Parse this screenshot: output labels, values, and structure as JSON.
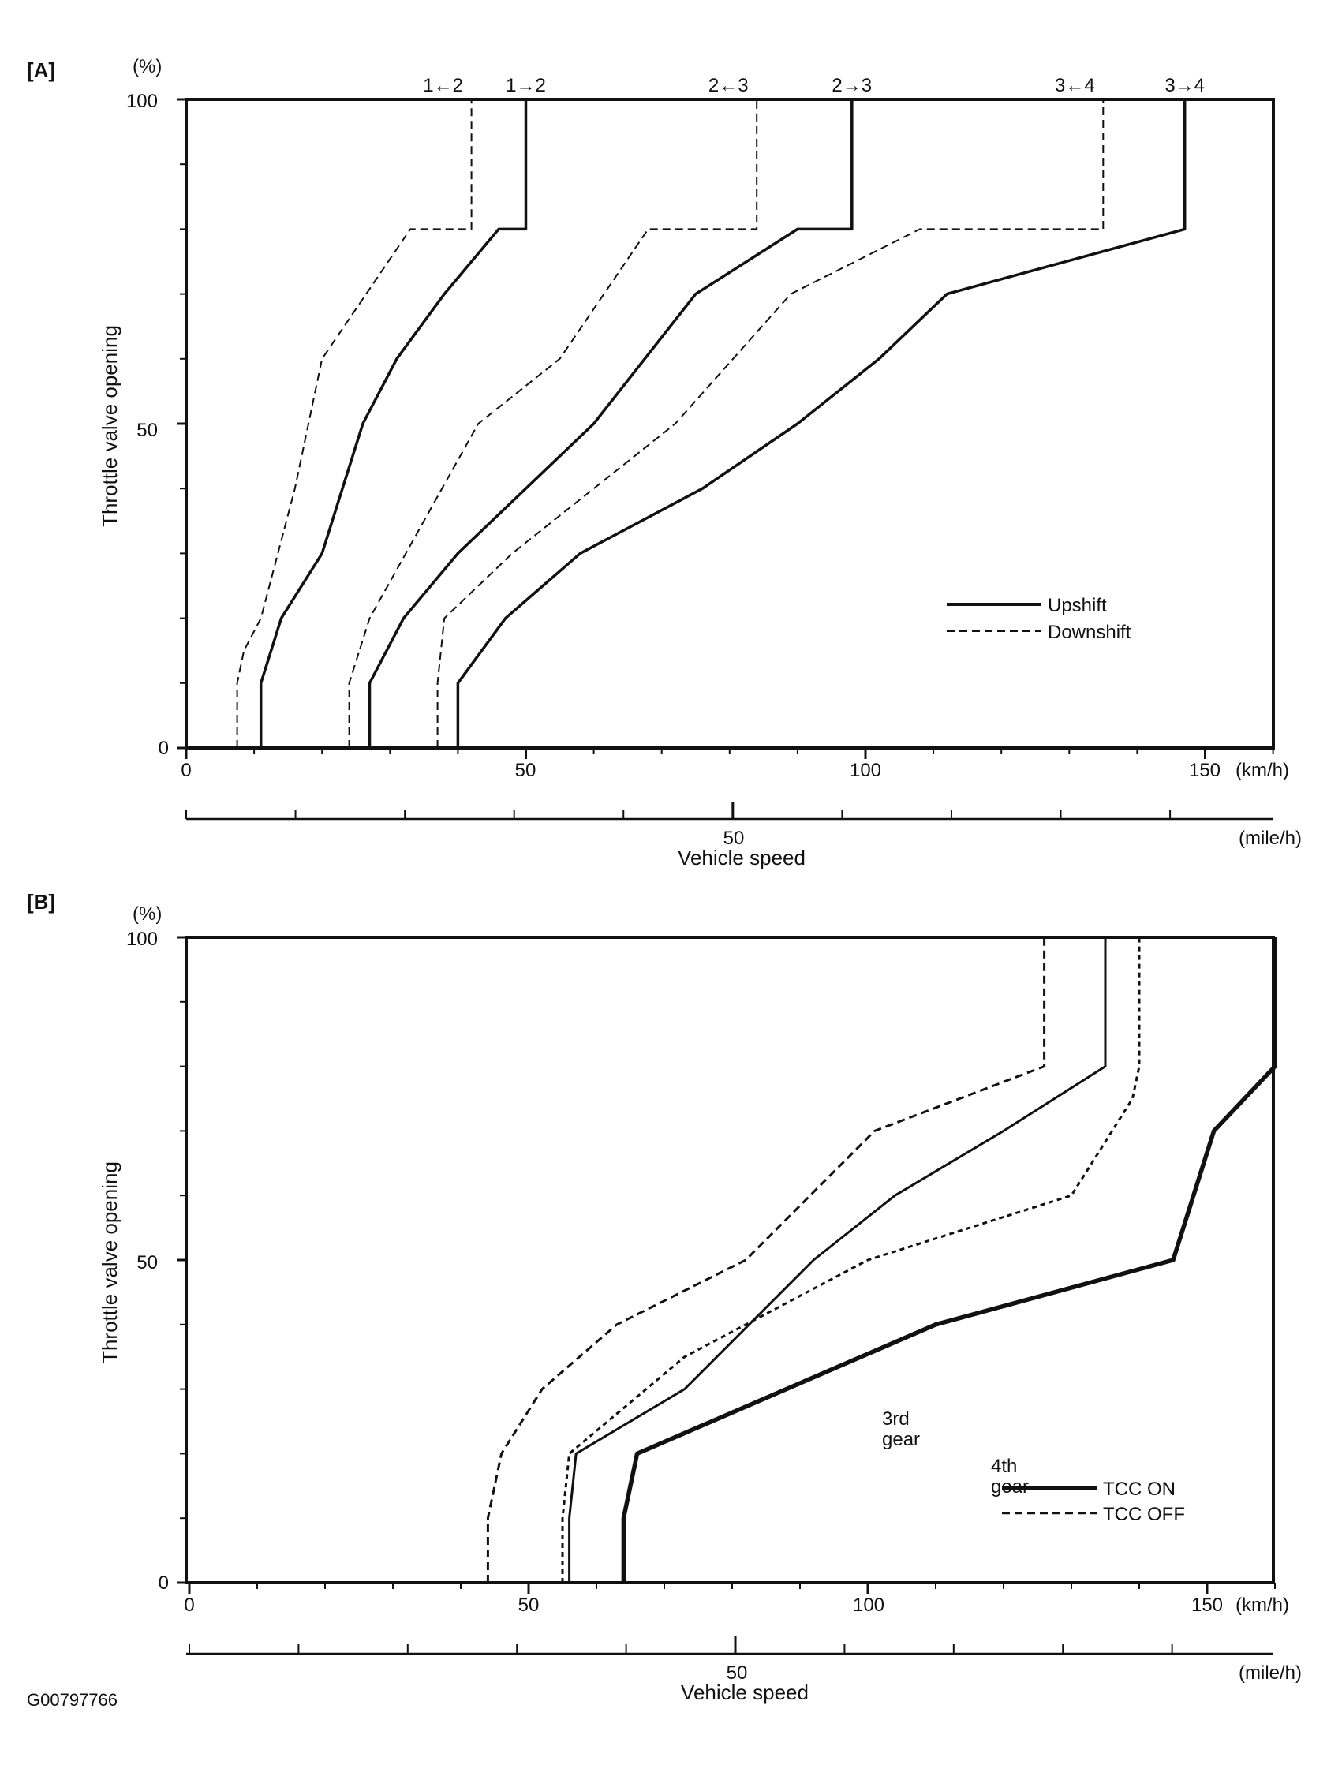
{
  "figure_id": "G00797766",
  "chart_data": [
    {
      "panel": "[A]",
      "type": "line",
      "title": "",
      "xlabel": "Vehicle speed",
      "ylabel": "Throttle valve opening",
      "y_unit": "(%)",
      "x_unit_primary": "(km/h)",
      "x_unit_secondary": "(mile/h)",
      "xlim": [
        0,
        160
      ],
      "ylim": [
        0,
        100
      ],
      "x_ticks": [
        "0",
        "50",
        "100",
        "150"
      ],
      "y_ticks": [
        "0",
        "50",
        "100"
      ],
      "secondary_ticks": [
        "50"
      ],
      "grid": false,
      "legend_position": "bottom-right",
      "legend": [
        {
          "label": "Upshift",
          "style": "solid"
        },
        {
          "label": "Downshift",
          "style": "dashed"
        }
      ],
      "top_labels": [
        "1←2",
        "1→2",
        "2←3",
        "2→3",
        "3←4",
        "3→4"
      ],
      "series": [
        {
          "name": "1←2",
          "style": "dashed",
          "x": [
            7.5,
            7.5,
            8.5,
            11,
            16,
            20,
            33,
            42,
            42
          ],
          "y": [
            0,
            10,
            15,
            20,
            40,
            60,
            80,
            80,
            100
          ]
        },
        {
          "name": "1→2",
          "style": "solid",
          "x": [
            11,
            11,
            14,
            20,
            26,
            31,
            38,
            46,
            50,
            50
          ],
          "y": [
            0,
            10,
            20,
            30,
            50,
            60,
            70,
            80,
            80,
            100
          ]
        },
        {
          "name": "2←3",
          "style": "dashed",
          "x": [
            24,
            24,
            27,
            35,
            43,
            55,
            68,
            84,
            84
          ],
          "y": [
            0,
            10,
            20,
            35,
            50,
            60,
            80,
            80,
            100
          ]
        },
        {
          "name": "2→3",
          "style": "solid",
          "x": [
            27,
            27,
            32,
            40,
            60,
            75,
            90,
            98,
            98
          ],
          "y": [
            0,
            10,
            20,
            30,
            50,
            70,
            80,
            80,
            100
          ]
        },
        {
          "name": "3←4",
          "style": "dashed",
          "x": [
            37,
            37,
            38,
            48,
            72,
            89,
            108,
            135,
            135
          ],
          "y": [
            0,
            10,
            20,
            30,
            50,
            70,
            80,
            80,
            100
          ]
        },
        {
          "name": "3→4",
          "style": "solid",
          "x": [
            40,
            40,
            47,
            58,
            76,
            90,
            102,
            112,
            147,
            147
          ],
          "y": [
            0,
            10,
            20,
            30,
            40,
            50,
            60,
            70,
            80,
            100
          ]
        }
      ]
    },
    {
      "panel": "[B]",
      "type": "line",
      "title": "",
      "xlabel": "Vehicle speed",
      "ylabel": "Throttle valve opening",
      "y_unit": "(%)",
      "x_unit_primary": "(km/h)",
      "x_unit_secondary": "(mile/h)",
      "xlim": [
        0,
        160
      ],
      "ylim": [
        0,
        100
      ],
      "x_ticks": [
        "0",
        "50",
        "100",
        "150"
      ],
      "y_ticks": [
        "0",
        "50",
        "100"
      ],
      "secondary_ticks": [
        "50"
      ],
      "grid": false,
      "legend_position": "bottom-right",
      "legend": [
        {
          "label": "TCC ON",
          "style": "solid"
        },
        {
          "label": "TCC OFF",
          "style": "dashed"
        }
      ],
      "annotations": [
        "3rd gear",
        "4th gear"
      ],
      "series": [
        {
          "name": "3rd gear TCC OFF",
          "style": "dashed",
          "x": [
            44,
            44,
            46,
            52,
            63,
            82,
            101,
            126,
            126
          ],
          "y": [
            0,
            10,
            20,
            30,
            40,
            50,
            70,
            80,
            100
          ]
        },
        {
          "name": "3rd gear TCC ON",
          "style": "solid",
          "x": [
            56,
            56,
            57,
            73,
            92,
            104,
            120,
            135,
            135
          ],
          "y": [
            0,
            10,
            20,
            30,
            50,
            60,
            70,
            80,
            100
          ]
        },
        {
          "name": "4th gear TCC OFF",
          "style": "dashed",
          "x": [
            55,
            55,
            56,
            73,
            100,
            130,
            139,
            140,
            140
          ],
          "y": [
            0,
            10,
            20,
            35,
            50,
            60,
            75,
            80,
            100
          ]
        },
        {
          "name": "4th gear TCC ON",
          "style": "solid",
          "x": [
            64,
            64,
            66,
            110,
            145,
            151,
            160,
            160
          ],
          "y": [
            0,
            10,
            20,
            40,
            50,
            70,
            80,
            100
          ]
        }
      ]
    }
  ]
}
